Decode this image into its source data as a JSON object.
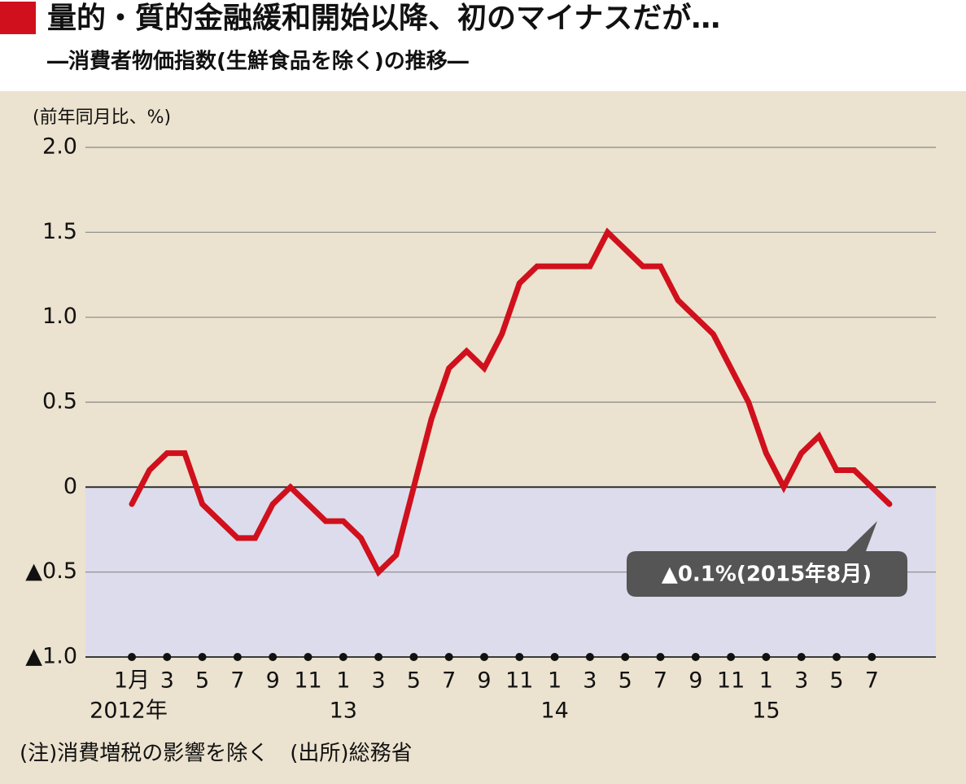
{
  "chart_data": {
    "type": "line",
    "title": "量的・質的金融緩和開始以降、初のマイナスだが…",
    "subtitle": "―消費者物価指数(生鮮食品を除く)の推移―",
    "y_axis_label": "(前年同月比、%)",
    "note": "(注)消費増税の影響を除く　(出所)総務省",
    "annotation": "▲0.1%(2015年8月)",
    "categories": [
      "1月",
      null,
      "3",
      null,
      "5",
      null,
      "7",
      null,
      "9",
      null,
      "11",
      null,
      "1",
      null,
      "3",
      null,
      "5",
      null,
      "7",
      null,
      "9",
      null,
      "11",
      null,
      "1",
      null,
      "3",
      null,
      "5",
      null,
      "7",
      null,
      "9",
      null,
      "11",
      null,
      "1",
      null,
      "3",
      null,
      "5",
      null,
      "7",
      null
    ],
    "year_labels": [
      "2012年",
      null,
      null,
      null,
      null,
      null,
      null,
      null,
      null,
      null,
      null,
      null,
      "13",
      null,
      null,
      null,
      null,
      null,
      null,
      null,
      null,
      null,
      null,
      null,
      "14",
      null,
      null,
      null,
      null,
      null,
      null,
      null,
      null,
      null,
      null,
      null,
      "15",
      null,
      null,
      null,
      null,
      null,
      null,
      null
    ],
    "series": [
      {
        "name": "消費者物価指数",
        "color": "#d0101c",
        "values": [
          -0.1,
          0.1,
          0.2,
          0.2,
          -0.1,
          -0.2,
          -0.3,
          -0.3,
          -0.1,
          0.0,
          -0.1,
          -0.2,
          -0.2,
          -0.3,
          -0.5,
          -0.4,
          0.0,
          0.4,
          0.7,
          0.8,
          0.7,
          0.9,
          1.2,
          1.3,
          1.3,
          1.3,
          1.3,
          1.5,
          1.4,
          1.3,
          1.3,
          1.1,
          1.0,
          0.9,
          0.7,
          0.5,
          0.2,
          0.0,
          0.2,
          0.3,
          0.1,
          0.1,
          0.0,
          -0.1
        ]
      }
    ],
    "ylim": [
      -1,
      2
    ],
    "yticks": [
      {
        "value": -1,
        "label": "▲1.0"
      },
      {
        "value": -0.5,
        "label": "▲0.5"
      },
      0,
      {
        "value": 0.5,
        "label": "0.5"
      },
      {
        "value": 1,
        "label": "1.0"
      },
      {
        "value": 1.5,
        "label": "1.5"
      },
      {
        "value": 2,
        "label": "2.0"
      }
    ],
    "negative_fill": "#dcdcec",
    "grid": true
  }
}
